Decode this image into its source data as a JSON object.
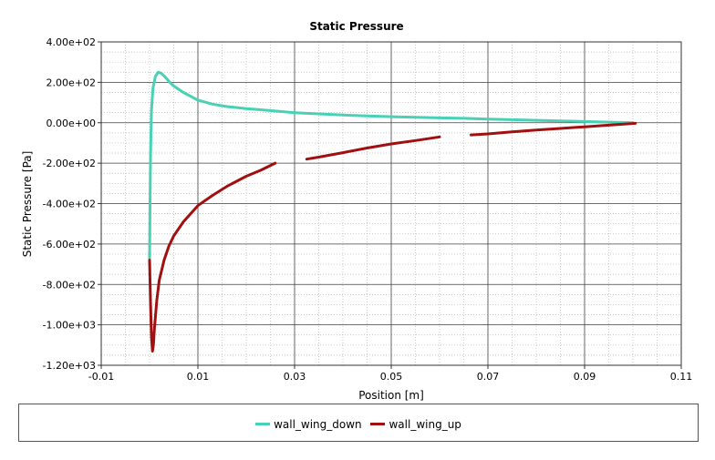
{
  "chart_data": {
    "type": "line",
    "title": "Static Pressure",
    "xlabel": "Position [m]",
    "ylabel": "Static Pressure [Pa]",
    "xlim": [
      -0.01,
      0.11
    ],
    "ylim": [
      -1200,
      400
    ],
    "x_ticks": [
      "-0.01",
      "0.01",
      "0.03",
      "0.05",
      "0.07",
      "0.09",
      "0.11"
    ],
    "x_tick_values": [
      -0.01,
      0.01,
      0.03,
      0.05,
      0.07,
      0.09,
      0.11
    ],
    "y_ticks": [
      "4.00e+02",
      "2.00e+02",
      "0.00e+00",
      "-2.00e+02",
      "-4.00e+02",
      "-6.00e+02",
      "-8.00e+02",
      "-1.00e+03",
      "-1.20e+03"
    ],
    "y_tick_values": [
      400,
      200,
      0,
      -200,
      -400,
      -600,
      -800,
      -1000,
      -1200
    ],
    "grid": true,
    "legend_position": "bottom",
    "series": [
      {
        "name": "wall_wing_down",
        "color": "#48d1b4",
        "segments": [
          [
            [
              0.0,
              -680
            ],
            [
              0.0001,
              -400
            ],
            [
              0.0002,
              -150
            ],
            [
              0.0004,
              60
            ],
            [
              0.0007,
              170
            ],
            [
              0.0012,
              230
            ],
            [
              0.0018,
              250
            ],
            [
              0.0024,
              245
            ],
            [
              0.003,
              232
            ],
            [
              0.004,
              205
            ],
            [
              0.005,
              182
            ],
            [
              0.007,
              150
            ],
            [
              0.01,
              112
            ],
            [
              0.013,
              92
            ],
            [
              0.016,
              80
            ],
            [
              0.02,
              70
            ],
            [
              0.025,
              60
            ],
            [
              0.03,
              50
            ],
            [
              0.035,
              44
            ],
            [
              0.04,
              38
            ],
            [
              0.045,
              34
            ],
            [
              0.05,
              30
            ],
            [
              0.055,
              27
            ],
            [
              0.06,
              24
            ],
            [
              0.065,
              22
            ],
            [
              0.07,
              18
            ],
            [
              0.075,
              15
            ],
            [
              0.08,
              12
            ],
            [
              0.085,
              9
            ],
            [
              0.09,
              6
            ],
            [
              0.095,
              3
            ],
            [
              0.1,
              0
            ]
          ]
        ]
      },
      {
        "name": "wall_wing_up",
        "color": "#a01010",
        "segments": [
          [
            [
              0.0,
              -680
            ],
            [
              0.0002,
              -900
            ],
            [
              0.0004,
              -1060
            ],
            [
              0.0006,
              -1130
            ],
            [
              0.0008,
              -1100
            ],
            [
              0.001,
              -1020
            ],
            [
              0.0015,
              -880
            ],
            [
              0.002,
              -780
            ],
            [
              0.003,
              -680
            ],
            [
              0.004,
              -610
            ],
            [
              0.005,
              -560
            ],
            [
              0.007,
              -490
            ],
            [
              0.01,
              -410
            ],
            [
              0.013,
              -360
            ],
            [
              0.016,
              -315
            ],
            [
              0.02,
              -265
            ],
            [
              0.023,
              -235
            ],
            [
              0.026,
              -200
            ]
          ],
          [
            [
              0.0325,
              -180
            ],
            [
              0.035,
              -170
            ],
            [
              0.04,
              -148
            ],
            [
              0.045,
              -125
            ],
            [
              0.05,
              -105
            ],
            [
              0.055,
              -88
            ],
            [
              0.06,
              -70
            ]
          ],
          [
            [
              0.0665,
              -60
            ],
            [
              0.07,
              -55
            ],
            [
              0.075,
              -45
            ],
            [
              0.08,
              -36
            ],
            [
              0.085,
              -28
            ],
            [
              0.09,
              -20
            ],
            [
              0.095,
              -12
            ],
            [
              0.1005,
              -3
            ]
          ]
        ]
      }
    ]
  }
}
